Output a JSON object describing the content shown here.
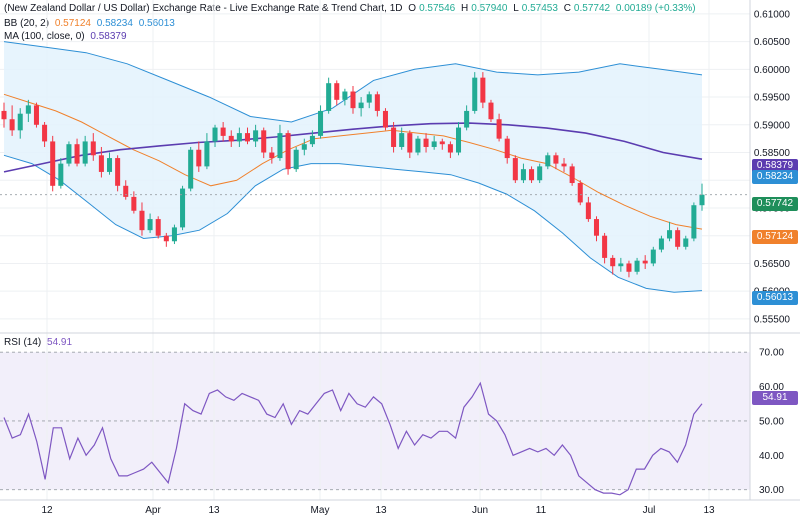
{
  "header": {
    "title": "(New Zealand Dollar / US Dollar) Exchange Rate - Live Exchange Rate & Trend Chart, 1D",
    "o_label": "O",
    "o_value": "0.57546",
    "h_label": "H",
    "h_value": "0.57940",
    "l_label": "L",
    "l_value": "0.57453",
    "c_label": "C",
    "c_value": "0.57742",
    "change": "0.00189 (+0.33%)"
  },
  "bb_legend": {
    "label": "BB (20, 2)",
    "middle": "0.57124",
    "upper": "0.58234",
    "lower": "0.56013"
  },
  "ma_legend": {
    "label": "MA (100, close, 0)",
    "value": "0.58379"
  },
  "rsi_legend": {
    "label": "RSI (14)",
    "value": "54.91"
  },
  "price_tags": {
    "ma": "0.58379",
    "bb_upper": "0.58234",
    "close": "0.57742",
    "bb_middle": "0.57124",
    "bb_lower": "0.56013",
    "rsi": "54.91"
  },
  "colors": {
    "up": "#22ab94",
    "down": "#f23645",
    "bb_middle": "#f0812c",
    "bb_band": "#2d8fd5",
    "bb_fill": "#e3f2fd",
    "ma": "#5b3cb0",
    "rsi": "#7e57c2",
    "rsi_fill": "#f2effa",
    "close_tag": "#1e8e5a"
  },
  "chart_data": [
    {
      "type": "candlestick",
      "title": "(New Zealand Dollar / US Dollar) Exchange Rate - Live Exchange Rate & Trend Chart, 1D",
      "x_ticks": [
        "12",
        "Apr",
        "13",
        "May",
        "13",
        "Jun",
        "11",
        "Jul",
        "13"
      ],
      "y_ticks": [
        "0.55500",
        "0.56000",
        "0.56500",
        "0.57000",
        "0.57500",
        "0.58000",
        "0.58500",
        "0.59000",
        "0.59500",
        "0.60000",
        "0.60500",
        "0.61000"
      ],
      "ylim": [
        0.553,
        0.6125
      ],
      "grid": true,
      "ohlc": [
        [
          0.5925,
          0.594,
          0.5895,
          0.591
        ],
        [
          0.591,
          0.5935,
          0.588,
          0.589
        ],
        [
          0.589,
          0.593,
          0.5875,
          0.592
        ],
        [
          0.592,
          0.5945,
          0.5905,
          0.5935
        ],
        [
          0.5935,
          0.594,
          0.5895,
          0.59
        ],
        [
          0.59,
          0.5905,
          0.586,
          0.587
        ],
        [
          0.587,
          0.588,
          0.578,
          0.579
        ],
        [
          0.579,
          0.584,
          0.5785,
          0.583
        ],
        [
          0.583,
          0.587,
          0.5825,
          0.5865
        ],
        [
          0.5865,
          0.5875,
          0.5825,
          0.583
        ],
        [
          0.583,
          0.588,
          0.5825,
          0.587
        ],
        [
          0.587,
          0.5885,
          0.5835,
          0.5845
        ],
        [
          0.5845,
          0.586,
          0.5805,
          0.5815
        ],
        [
          0.5815,
          0.585,
          0.581,
          0.584
        ],
        [
          0.584,
          0.5845,
          0.578,
          0.579
        ],
        [
          0.579,
          0.58,
          0.5765,
          0.577
        ],
        [
          0.577,
          0.578,
          0.574,
          0.5745
        ],
        [
          0.5745,
          0.576,
          0.57,
          0.571
        ],
        [
          0.571,
          0.574,
          0.5705,
          0.573
        ],
        [
          0.573,
          0.5735,
          0.5695,
          0.57
        ],
        [
          0.57,
          0.5705,
          0.568,
          0.569
        ],
        [
          0.569,
          0.572,
          0.5685,
          0.5715
        ],
        [
          0.5715,
          0.579,
          0.571,
          0.5785
        ],
        [
          0.5785,
          0.586,
          0.578,
          0.5855
        ],
        [
          0.5855,
          0.587,
          0.5815,
          0.5825
        ],
        [
          0.5825,
          0.5885,
          0.582,
          0.587
        ],
        [
          0.587,
          0.59,
          0.586,
          0.5895
        ],
        [
          0.5895,
          0.5905,
          0.587,
          0.588
        ],
        [
          0.588,
          0.589,
          0.586,
          0.587
        ],
        [
          0.587,
          0.5895,
          0.586,
          0.5885
        ],
        [
          0.5885,
          0.5895,
          0.5865,
          0.587
        ],
        [
          0.587,
          0.59,
          0.586,
          0.589
        ],
        [
          0.589,
          0.5895,
          0.584,
          0.585
        ],
        [
          0.585,
          0.586,
          0.583,
          0.584
        ],
        [
          0.584,
          0.59,
          0.5835,
          0.5885
        ],
        [
          0.5885,
          0.589,
          0.581,
          0.582
        ],
        [
          0.582,
          0.586,
          0.5815,
          0.5855
        ],
        [
          0.5855,
          0.5875,
          0.5845,
          0.5865
        ],
        [
          0.5865,
          0.589,
          0.586,
          0.588
        ],
        [
          0.588,
          0.5935,
          0.5875,
          0.5925
        ],
        [
          0.5925,
          0.5985,
          0.592,
          0.5975
        ],
        [
          0.5975,
          0.598,
          0.5935,
          0.5945
        ],
        [
          0.5945,
          0.5965,
          0.5935,
          0.596
        ],
        [
          0.596,
          0.597,
          0.592,
          0.593
        ],
        [
          0.593,
          0.595,
          0.5915,
          0.594
        ],
        [
          0.594,
          0.596,
          0.593,
          0.5955
        ],
        [
          0.5955,
          0.596,
          0.5915,
          0.5925
        ],
        [
          0.5925,
          0.593,
          0.589,
          0.5895
        ],
        [
          0.5895,
          0.5905,
          0.585,
          0.586
        ],
        [
          0.586,
          0.5895,
          0.5855,
          0.5885
        ],
        [
          0.5885,
          0.589,
          0.584,
          0.585
        ],
        [
          0.585,
          0.588,
          0.5845,
          0.5875
        ],
        [
          0.5875,
          0.5885,
          0.585,
          0.586
        ],
        [
          0.586,
          0.588,
          0.5855,
          0.587
        ],
        [
          0.587,
          0.5875,
          0.5855,
          0.5865
        ],
        [
          0.5865,
          0.587,
          0.584,
          0.585
        ],
        [
          0.585,
          0.5905,
          0.5845,
          0.5895
        ],
        [
          0.5895,
          0.5935,
          0.589,
          0.5925
        ],
        [
          0.5925,
          0.5995,
          0.592,
          0.5985
        ],
        [
          0.5985,
          0.5995,
          0.593,
          0.594
        ],
        [
          0.594,
          0.5945,
          0.5905,
          0.591
        ],
        [
          0.591,
          0.592,
          0.587,
          0.5875
        ],
        [
          0.5875,
          0.588,
          0.583,
          0.584
        ],
        [
          0.584,
          0.5845,
          0.5795,
          0.58
        ],
        [
          0.58,
          0.583,
          0.5795,
          0.582
        ],
        [
          0.582,
          0.5825,
          0.5795,
          0.58
        ],
        [
          0.58,
          0.583,
          0.5795,
          0.5825
        ],
        [
          0.5825,
          0.585,
          0.582,
          0.5845
        ],
        [
          0.5845,
          0.585,
          0.582,
          0.583
        ],
        [
          0.583,
          0.584,
          0.5815,
          0.5825
        ],
        [
          0.5825,
          0.583,
          0.579,
          0.5795
        ],
        [
          0.5795,
          0.58,
          0.5755,
          0.576
        ],
        [
          0.576,
          0.577,
          0.5725,
          0.573
        ],
        [
          0.573,
          0.5735,
          0.569,
          0.57
        ],
        [
          0.57,
          0.5705,
          0.565,
          0.566
        ],
        [
          0.566,
          0.5665,
          0.563,
          0.5645
        ],
        [
          0.5645,
          0.566,
          0.5635,
          0.565
        ],
        [
          0.565,
          0.5655,
          0.5625,
          0.5635
        ],
        [
          0.5635,
          0.566,
          0.563,
          0.5655
        ],
        [
          0.5655,
          0.5665,
          0.564,
          0.565
        ],
        [
          0.565,
          0.568,
          0.5645,
          0.5675
        ],
        [
          0.5675,
          0.57,
          0.567,
          0.5695
        ],
        [
          0.5695,
          0.5725,
          0.569,
          0.571
        ],
        [
          0.571,
          0.5715,
          0.5675,
          0.568
        ],
        [
          0.568,
          0.57,
          0.5675,
          0.5695
        ],
        [
          0.5695,
          0.576,
          0.569,
          0.5755
        ],
        [
          0.5755,
          0.5794,
          0.5745,
          0.5774
        ]
      ],
      "bb_upper": [
        0.605,
        0.604,
        0.603,
        0.601,
        0.598,
        0.595,
        0.5915,
        0.5905,
        0.593,
        0.598,
        0.6,
        0.601,
        0.5995,
        0.599,
        0.5995,
        0.601,
        0.6,
        0.599
      ],
      "bb_middle": [
        0.5955,
        0.594,
        0.5925,
        0.5905,
        0.588,
        0.5855,
        0.5835,
        0.581,
        0.579,
        0.58,
        0.583,
        0.5855,
        0.5875,
        0.588,
        0.5885,
        0.589,
        0.5885,
        0.588,
        0.5868,
        0.5855,
        0.584,
        0.583,
        0.5805,
        0.5778,
        0.5755,
        0.5735,
        0.572,
        0.5712
      ],
      "bb_lower": [
        0.5845,
        0.583,
        0.58,
        0.576,
        0.572,
        0.5695,
        0.57,
        0.571,
        0.574,
        0.579,
        0.582,
        0.583,
        0.583,
        0.5825,
        0.582,
        0.5815,
        0.581,
        0.5795,
        0.5775,
        0.5745,
        0.5705,
        0.566,
        0.5625,
        0.5605,
        0.5598,
        0.5601
      ],
      "ma": [
        0.5815,
        0.583,
        0.5845,
        0.5855,
        0.5862,
        0.5868,
        0.5872,
        0.5878,
        0.5885,
        0.5892,
        0.5898,
        0.5902,
        0.5903,
        0.59,
        0.5894,
        0.5885,
        0.587,
        0.585,
        0.5838
      ]
    },
    {
      "type": "line",
      "series_name": "RSI (14)",
      "y_ticks": [
        "30.00",
        "40.00",
        "50.00",
        "60.00",
        "70.00"
      ],
      "ylim": [
        27,
        75
      ],
      "levels": [
        30,
        50,
        70
      ],
      "rsi": [
        51,
        45,
        46,
        52,
        44,
        33,
        48,
        48,
        39,
        45,
        40,
        43,
        48,
        39,
        34,
        34,
        35,
        36,
        38,
        35,
        32,
        42,
        55,
        53,
        52,
        58,
        59,
        57,
        56,
        58,
        57,
        56,
        52,
        51,
        55,
        49,
        53,
        52,
        55,
        58,
        59,
        53,
        58,
        55,
        54,
        57,
        55,
        49,
        42,
        47,
        43,
        46,
        45,
        47,
        47,
        45,
        54,
        57,
        61,
        52,
        50,
        46,
        40,
        41,
        42,
        41,
        42,
        40,
        43,
        40,
        34,
        32,
        30,
        29,
        29,
        28.5,
        30,
        36,
        36,
        40,
        42,
        41,
        38,
        43,
        52,
        55
      ]
    }
  ]
}
